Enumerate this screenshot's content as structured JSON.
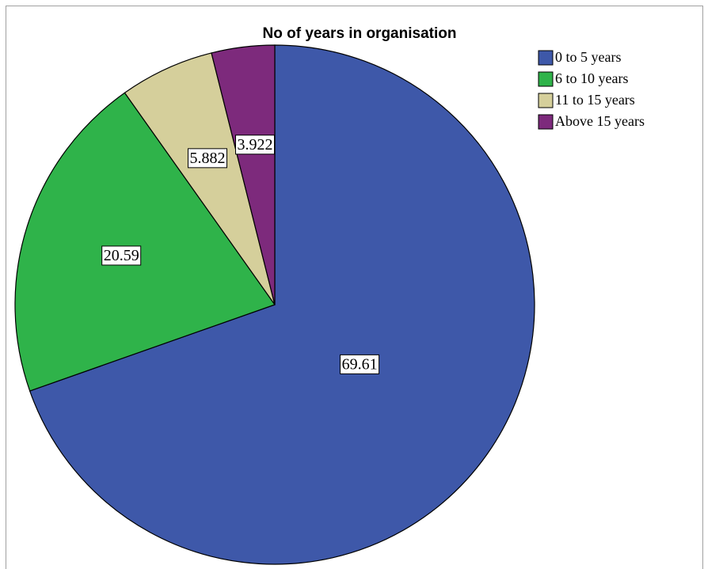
{
  "chart_data": {
    "type": "pie",
    "title": "No of years in organisation",
    "categories": [
      "0 to 5 years",
      "6 to 10 years",
      "11 to 15 years",
      "Above 15 years"
    ],
    "values": [
      69.61,
      20.59,
      5.882,
      3.922
    ],
    "colors": [
      "#3e58a9",
      "#2fb34a",
      "#d5cf9b",
      "#7d2a7c"
    ],
    "legend": "top-right"
  }
}
